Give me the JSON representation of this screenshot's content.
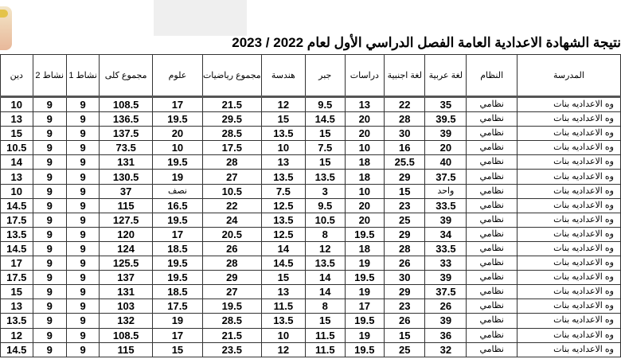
{
  "title": "نتيجة الشهادة الاعدادية العامة الفصل الدراسي الأول لعام 2022  /  2023",
  "columns": [
    "المدرسة",
    "النظام",
    "لغة عربية",
    "لغة اجنبية",
    "دراسات",
    "جبر",
    "هندسة",
    "مجموع رياضيات",
    "علوم",
    "مجموع كلى",
    "نشاط 1",
    "نشاط 2",
    "دين"
  ],
  "rows": [
    [
      "وه الاعداديه بنات",
      "نظامي",
      "35",
      "22",
      "13",
      "9.5",
      "12",
      "21.5",
      "17",
      "108.5",
      "9",
      "9",
      "10"
    ],
    [
      "وه الاعداديه بنات",
      "نظامي",
      "39.5",
      "28",
      "20",
      "14.5",
      "15",
      "29.5",
      "19.5",
      "136.5",
      "9",
      "9",
      "13"
    ],
    [
      "وه الاعداديه بنات",
      "نظامي",
      "39",
      "30",
      "20",
      "15",
      "13.5",
      "28.5",
      "20",
      "137.5",
      "9",
      "9",
      "15"
    ],
    [
      "وه الاعداديه بنات",
      "نظامي",
      "20",
      "16",
      "10",
      "7.5",
      "10",
      "17.5",
      "10",
      "73.5",
      "9",
      "9",
      "10.5"
    ],
    [
      "وه الاعداديه بنات",
      "نظامي",
      "40",
      "25.5",
      "18",
      "15",
      "13",
      "28",
      "19.5",
      "131",
      "9",
      "9",
      "14"
    ],
    [
      "وه الاعداديه بنات",
      "نظامي",
      "37.5",
      "29",
      "18",
      "13.5",
      "13.5",
      "27",
      "19",
      "130.5",
      "9",
      "9",
      "13"
    ],
    [
      "وه الاعداديه بنات",
      "نظامي",
      "واحد",
      "15",
      "10",
      "3",
      "7.5",
      "10.5",
      "نصف",
      "37",
      "9",
      "9",
      "10"
    ],
    [
      "وه الاعداديه بنات",
      "نظامي",
      "33.5",
      "23",
      "20",
      "9.5",
      "12.5",
      "22",
      "16.5",
      "115",
      "9",
      "9",
      "14.5"
    ],
    [
      "وه الاعداديه بنات",
      "نظامي",
      "39",
      "25",
      "20",
      "10.5",
      "13.5",
      "24",
      "19.5",
      "127.5",
      "9",
      "9",
      "17.5"
    ],
    [
      "وه الاعداديه بنات",
      "نظامي",
      "34",
      "29",
      "19.5",
      "8",
      "12.5",
      "20.5",
      "17",
      "120",
      "9",
      "9",
      "13.5"
    ],
    [
      "وه الاعداديه بنات",
      "نظامي",
      "33.5",
      "28",
      "18",
      "12",
      "14",
      "26",
      "18.5",
      "124",
      "9",
      "9",
      "14.5"
    ],
    [
      "وه الاعداديه بنات",
      "نظامي",
      "33",
      "26",
      "19",
      "13.5",
      "14.5",
      "28",
      "19.5",
      "125.5",
      "9",
      "9",
      "17"
    ],
    [
      "وه الاعداديه بنات",
      "نظامي",
      "39",
      "30",
      "19.5",
      "14",
      "15",
      "29",
      "19.5",
      "137",
      "9",
      "9",
      "17.5"
    ],
    [
      "وه الاعداديه بنات",
      "نظامي",
      "37.5",
      "29",
      "19",
      "14",
      "13",
      "27",
      "18.5",
      "131",
      "9",
      "9",
      "15"
    ],
    [
      "وه الاعداديه بنات",
      "نظامي",
      "26",
      "23",
      "17",
      "8",
      "11.5",
      "19.5",
      "17.5",
      "103",
      "9",
      "9",
      "13"
    ],
    [
      "وه الاعداديه بنات",
      "نظامي",
      "39",
      "26",
      "19.5",
      "15",
      "13.5",
      "28.5",
      "19",
      "132",
      "9",
      "9",
      "13.5"
    ],
    [
      "وه الاعداديه بنات",
      "نظامي",
      "36",
      "15",
      "19",
      "11.5",
      "10",
      "21.5",
      "17",
      "108.5",
      "9",
      "9",
      "12"
    ],
    [
      "وه الاعداديه بنات",
      "نظامي",
      "32",
      "25",
      "19.5",
      "11.5",
      "12",
      "23.5",
      "15",
      "115",
      "9",
      "9",
      "14.5"
    ]
  ]
}
